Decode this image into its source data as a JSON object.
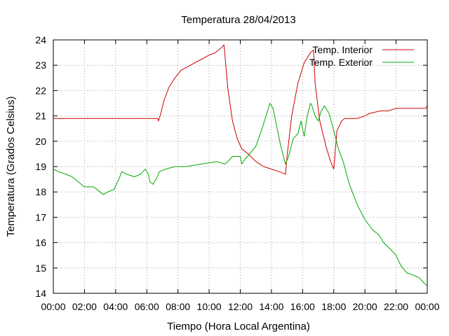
{
  "chart_data": {
    "type": "line",
    "title": "Temperatura 28/04/2013",
    "xlabel": "Tiempo (Hora Local Argentina)",
    "ylabel": "Temperatura (Grados Celsius)",
    "xlim": [
      0,
      24
    ],
    "ylim": [
      14,
      24
    ],
    "x_ticks": [
      {
        "value": 0,
        "label": "00:00"
      },
      {
        "value": 2,
        "label": "02:00"
      },
      {
        "value": 4,
        "label": "04:00"
      },
      {
        "value": 6,
        "label": "06:00"
      },
      {
        "value": 8,
        "label": "08:00"
      },
      {
        "value": 10,
        "label": "10:00"
      },
      {
        "value": 12,
        "label": "12:00"
      },
      {
        "value": 14,
        "label": "14:00"
      },
      {
        "value": 16,
        "label": "16:00"
      },
      {
        "value": 18,
        "label": "18:00"
      },
      {
        "value": 20,
        "label": "20:00"
      },
      {
        "value": 22,
        "label": "22:00"
      },
      {
        "value": 24,
        "label": "00:00"
      }
    ],
    "y_ticks": [
      {
        "value": 14,
        "label": "14"
      },
      {
        "value": 15,
        "label": "15"
      },
      {
        "value": 16,
        "label": "16"
      },
      {
        "value": 17,
        "label": "17"
      },
      {
        "value": 18,
        "label": "18"
      },
      {
        "value": 19,
        "label": "19"
      },
      {
        "value": 20,
        "label": "20"
      },
      {
        "value": 21,
        "label": "21"
      },
      {
        "value": 22,
        "label": "22"
      },
      {
        "value": 23,
        "label": "23"
      },
      {
        "value": 24,
        "label": "24"
      }
    ],
    "grid": true,
    "legend_position": "top-right",
    "series": [
      {
        "name": "Temp. Interior",
        "color": "#cc0000",
        "points": [
          [
            0,
            20.9
          ],
          [
            6.7,
            20.9
          ],
          [
            6.75,
            20.8
          ],
          [
            6.9,
            21.1
          ],
          [
            7.1,
            21.6
          ],
          [
            7.4,
            22.1
          ],
          [
            7.8,
            22.5
          ],
          [
            8.2,
            22.8
          ],
          [
            8.8,
            23.0
          ],
          [
            9.4,
            23.2
          ],
          [
            10.0,
            23.4
          ],
          [
            10.4,
            23.5
          ],
          [
            10.8,
            23.7
          ],
          [
            10.95,
            23.8
          ],
          [
            11.0,
            23.5
          ],
          [
            11.2,
            22.1
          ],
          [
            11.5,
            20.8
          ],
          [
            11.8,
            20.1
          ],
          [
            12.1,
            19.7
          ],
          [
            12.5,
            19.5
          ],
          [
            13.0,
            19.2
          ],
          [
            13.5,
            19.0
          ],
          [
            14.0,
            18.9
          ],
          [
            14.5,
            18.8
          ],
          [
            14.9,
            18.7
          ],
          [
            15.0,
            19.4
          ],
          [
            15.3,
            21.0
          ],
          [
            15.7,
            22.3
          ],
          [
            16.1,
            23.1
          ],
          [
            16.5,
            23.5
          ],
          [
            16.7,
            23.6
          ],
          [
            16.8,
            22.3
          ],
          [
            17.1,
            20.8
          ],
          [
            17.5,
            19.8
          ],
          [
            17.8,
            19.2
          ],
          [
            18.0,
            18.9
          ],
          [
            18.2,
            20.4
          ],
          [
            18.5,
            20.8
          ],
          [
            18.7,
            20.9
          ],
          [
            19.5,
            20.9
          ],
          [
            20.0,
            21.0
          ],
          [
            20.3,
            21.1
          ],
          [
            21.0,
            21.2
          ],
          [
            21.5,
            21.2
          ],
          [
            22.0,
            21.3
          ],
          [
            23.9,
            21.3
          ],
          [
            24.0,
            21.4
          ]
        ]
      },
      {
        "name": "Temp. Exterior",
        "color": "#00aa00",
        "points": [
          [
            0,
            18.9
          ],
          [
            0.3,
            18.8
          ],
          [
            0.8,
            18.7
          ],
          [
            1.2,
            18.6
          ],
          [
            1.6,
            18.4
          ],
          [
            2.0,
            18.2
          ],
          [
            2.6,
            18.2
          ],
          [
            3.0,
            18.0
          ],
          [
            3.2,
            17.9
          ],
          [
            3.5,
            18.0
          ],
          [
            3.9,
            18.1
          ],
          [
            4.2,
            18.5
          ],
          [
            4.4,
            18.8
          ],
          [
            4.7,
            18.7
          ],
          [
            5.2,
            18.6
          ],
          [
            5.6,
            18.7
          ],
          [
            5.9,
            18.9
          ],
          [
            6.1,
            18.7
          ],
          [
            6.2,
            18.4
          ],
          [
            6.4,
            18.3
          ],
          [
            6.6,
            18.5
          ],
          [
            6.8,
            18.8
          ],
          [
            7.2,
            18.9
          ],
          [
            7.8,
            19.0
          ],
          [
            8.5,
            19.0
          ],
          [
            9.5,
            19.1
          ],
          [
            10.5,
            19.2
          ],
          [
            11.0,
            19.1
          ],
          [
            11.2,
            19.2
          ],
          [
            11.5,
            19.4
          ],
          [
            12.0,
            19.4
          ],
          [
            12.1,
            19.1
          ],
          [
            12.3,
            19.3
          ],
          [
            12.6,
            19.5
          ],
          [
            13.0,
            19.8
          ],
          [
            13.4,
            20.5
          ],
          [
            13.7,
            21.1
          ],
          [
            13.9,
            21.5
          ],
          [
            14.1,
            21.3
          ],
          [
            14.3,
            20.7
          ],
          [
            14.6,
            19.8
          ],
          [
            14.9,
            19.1
          ],
          [
            15.1,
            19.4
          ],
          [
            15.4,
            20.1
          ],
          [
            15.7,
            20.3
          ],
          [
            15.9,
            20.8
          ],
          [
            16.1,
            20.2
          ],
          [
            16.3,
            21.0
          ],
          [
            16.5,
            21.5
          ],
          [
            16.6,
            21.4
          ],
          [
            16.8,
            21.0
          ],
          [
            17.0,
            20.8
          ],
          [
            17.2,
            21.2
          ],
          [
            17.4,
            21.4
          ],
          [
            17.7,
            21.1
          ],
          [
            18.0,
            20.4
          ],
          [
            18.3,
            19.7
          ],
          [
            18.6,
            19.2
          ],
          [
            19.0,
            18.3
          ],
          [
            19.5,
            17.5
          ],
          [
            20.0,
            16.9
          ],
          [
            20.5,
            16.5
          ],
          [
            20.9,
            16.3
          ],
          [
            21.2,
            16.0
          ],
          [
            21.7,
            15.7
          ],
          [
            22.0,
            15.5
          ],
          [
            22.3,
            15.1
          ],
          [
            22.7,
            14.8
          ],
          [
            23.2,
            14.7
          ],
          [
            23.5,
            14.6
          ],
          [
            23.8,
            14.4
          ],
          [
            24.0,
            14.3
          ]
        ]
      }
    ]
  }
}
